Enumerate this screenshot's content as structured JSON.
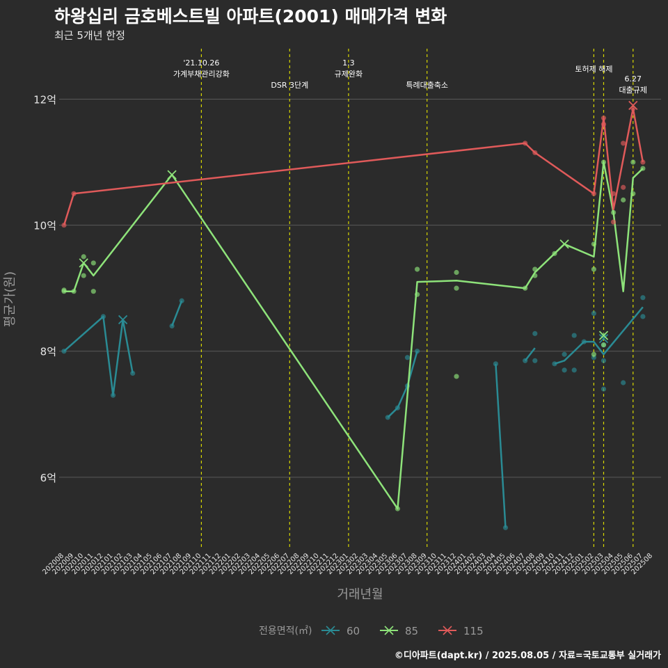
{
  "title": "하왕십리 금호베스트빌 아파트(2001) 매매가격 변화",
  "subtitle": "최근 5개년 한정",
  "credit": "©디아파트(dapt.kr) / 2025.08.05 / 자료=국토교통부 실거래가",
  "colors": {
    "background": "#2b2b2b",
    "grid": "#5a5a5a",
    "event_line": "#d8d800",
    "text": "#e6e6e6",
    "axis_title": "#9a9a9a"
  },
  "chart_data": {
    "type": "line",
    "xlabel": "거래년월",
    "ylabel": "평균가(원)",
    "ylim": [
      4.85,
      12.8
    ],
    "y_ticks": [
      6,
      8,
      10,
      12
    ],
    "y_tick_labels": [
      "6억",
      "8억",
      "10억",
      "12억"
    ],
    "x_ticks": [
      "202008",
      "202009",
      "202010",
      "202011",
      "202012",
      "202101",
      "202102",
      "202103",
      "202104",
      "202105",
      "202106",
      "202107",
      "202108",
      "202109",
      "202110",
      "202111",
      "202112",
      "202201",
      "202202",
      "202203",
      "202204",
      "202205",
      "202206",
      "202207",
      "202208",
      "202209",
      "202210",
      "202211",
      "202212",
      "202301",
      "202302",
      "202303",
      "202304",
      "202305",
      "202306",
      "202307",
      "202308",
      "202309",
      "202310",
      "202311",
      "202312",
      "202401",
      "202402",
      "202403",
      "202404",
      "202405",
      "202406",
      "202407",
      "202408",
      "202409",
      "202410",
      "202411",
      "202412",
      "202501",
      "202502",
      "202503",
      "202504",
      "202505",
      "202506",
      "202507",
      "202508"
    ],
    "legend": {
      "title": "전용면적(㎡)",
      "position": "bottom"
    },
    "events": [
      {
        "month": "202110",
        "lines": [
          "'21.10.26",
          "가계부채관리강화"
        ],
        "level": "high"
      },
      {
        "month": "202207",
        "lines": [
          "DSR 3단계"
        ],
        "level": "low"
      },
      {
        "month": "202301",
        "lines": [
          "1.3",
          "규제완화"
        ],
        "level": "high"
      },
      {
        "month": "202309",
        "lines": [
          "특례대출축소"
        ],
        "level": "low"
      },
      {
        "month": "202502",
        "lines": [
          "토허제 해제"
        ],
        "level": "mid"
      },
      {
        "month": "202503",
        "lines": [],
        "level": "none"
      },
      {
        "month": "202506",
        "lines": [
          "6.27",
          "대출규제"
        ],
        "level": "low"
      }
    ],
    "series": [
      {
        "name": "60",
        "color": "#2a8b94",
        "line": [
          [
            "202008",
            8.0
          ],
          [
            "202012",
            8.55
          ],
          [
            "202101",
            7.3
          ],
          [
            "202102",
            8.5
          ],
          [
            "202103",
            7.65
          ]
        ],
        "line_segments": [
          [
            [
              "202107",
              8.4
            ],
            [
              "202108",
              8.8
            ]
          ],
          [
            [
              "202305",
              6.95
            ],
            [
              "202306",
              7.1
            ],
            [
              "202307",
              7.45
            ],
            [
              "202308",
              8.0
            ]
          ],
          [
            [
              "202404",
              7.8
            ],
            [
              "202405",
              5.2
            ]
          ],
          [
            [
              "202407",
              7.85
            ],
            [
              "202408",
              8.05
            ]
          ],
          [
            [
              "202410",
              7.8
            ],
            [
              "202411",
              7.85
            ],
            [
              "202501",
              8.15
            ],
            [
              "202502",
              8.15
            ],
            [
              "202503",
              7.95
            ],
            [
              "202507",
              8.7
            ]
          ]
        ],
        "points": [
          [
            "202008",
            8.0
          ],
          [
            "202012",
            8.55
          ],
          [
            "202101",
            7.3
          ],
          [
            "202103",
            7.65
          ],
          [
            "202107",
            8.4
          ],
          [
            "202108",
            8.8
          ],
          [
            "202305",
            6.95
          ],
          [
            "202306",
            7.1
          ],
          [
            "202307",
            7.45
          ],
          [
            "202307",
            7.9
          ],
          [
            "202308",
            8.0
          ],
          [
            "202404",
            7.8
          ],
          [
            "202405",
            5.2
          ],
          [
            "202407",
            7.85
          ],
          [
            "202408",
            8.28
          ],
          [
            "202408",
            7.85
          ],
          [
            "202410",
            7.8
          ],
          [
            "202411",
            7.7
          ],
          [
            "202411",
            7.95
          ],
          [
            "202412",
            7.7
          ],
          [
            "202412",
            8.25
          ],
          [
            "202501",
            8.15
          ],
          [
            "202502",
            8.6
          ],
          [
            "202502",
            7.9
          ],
          [
            "202503",
            8.1
          ],
          [
            "202503",
            7.85
          ],
          [
            "202503",
            7.4
          ],
          [
            "202503",
            8.25
          ],
          [
            "202505",
            7.5
          ],
          [
            "202507",
            8.55
          ],
          [
            "202507",
            8.85
          ]
        ],
        "cross_points": [
          [
            "202102",
            8.5
          ],
          [
            "202503",
            8.2
          ]
        ]
      },
      {
        "name": "85",
        "color": "#8ee37a",
        "line": [
          [
            "202008",
            8.95
          ],
          [
            "202009",
            8.95
          ],
          [
            "202010",
            9.4
          ],
          [
            "202011",
            9.2
          ],
          [
            "202107",
            10.8
          ],
          [
            "202306",
            5.5
          ],
          [
            "202308",
            9.1
          ],
          [
            "202312",
            9.12
          ],
          [
            "202407",
            9.0
          ],
          [
            "202408",
            9.25
          ],
          [
            "202410",
            9.55
          ],
          [
            "202411",
            9.7
          ],
          [
            "202502",
            9.5
          ],
          [
            "202503",
            11.0
          ],
          [
            "202504",
            10.2
          ],
          [
            "202505",
            8.95
          ],
          [
            "202506",
            10.75
          ],
          [
            "202507",
            10.9
          ]
        ],
        "points": [
          [
            "202008",
            8.97
          ],
          [
            "202008",
            8.95
          ],
          [
            "202009",
            8.95
          ],
          [
            "202010",
            9.5
          ],
          [
            "202010",
            9.2
          ],
          [
            "202011",
            9.4
          ],
          [
            "202011",
            8.95
          ],
          [
            "202306",
            5.5
          ],
          [
            "202308",
            9.3
          ],
          [
            "202308",
            8.9
          ],
          [
            "202312",
            9.25
          ],
          [
            "202312",
            9.0
          ],
          [
            "202312",
            7.6
          ],
          [
            "202407",
            9.0
          ],
          [
            "202408",
            9.3
          ],
          [
            "202408",
            9.2
          ],
          [
            "202410",
            9.55
          ],
          [
            "202502",
            9.7
          ],
          [
            "202502",
            9.3
          ],
          [
            "202502",
            7.95
          ],
          [
            "202503",
            11.0
          ],
          [
            "202503",
            8.1
          ],
          [
            "202504",
            10.2
          ],
          [
            "202505",
            10.4
          ],
          [
            "202506",
            11.0
          ],
          [
            "202506",
            10.5
          ],
          [
            "202507",
            10.9
          ]
        ],
        "cross_points": [
          [
            "202010",
            9.4
          ],
          [
            "202107",
            10.8
          ],
          [
            "202411",
            9.7
          ],
          [
            "202503",
            8.25
          ]
        ]
      },
      {
        "name": "115",
        "color": "#e05a5a",
        "line": [
          [
            "202008",
            10.0
          ],
          [
            "202009",
            10.5
          ],
          [
            "202407",
            11.3
          ],
          [
            "202408",
            11.15
          ],
          [
            "202502",
            10.5
          ],
          [
            "202503",
            11.7
          ],
          [
            "202504",
            10.25
          ],
          [
            "202506",
            11.85
          ],
          [
            "202507",
            11.0
          ]
        ],
        "points": [
          [
            "202008",
            10.0
          ],
          [
            "202009",
            10.5
          ],
          [
            "202407",
            11.3
          ],
          [
            "202408",
            11.15
          ],
          [
            "202502",
            10.5
          ],
          [
            "202503",
            11.7
          ],
          [
            "202503",
            11.6
          ],
          [
            "202504",
            10.5
          ],
          [
            "202504",
            10.05
          ],
          [
            "202505",
            11.3
          ],
          [
            "202505",
            10.6
          ],
          [
            "202506",
            11.85
          ],
          [
            "202507",
            11.0
          ]
        ],
        "cross_points": [
          [
            "202506",
            11.9
          ]
        ]
      }
    ]
  }
}
